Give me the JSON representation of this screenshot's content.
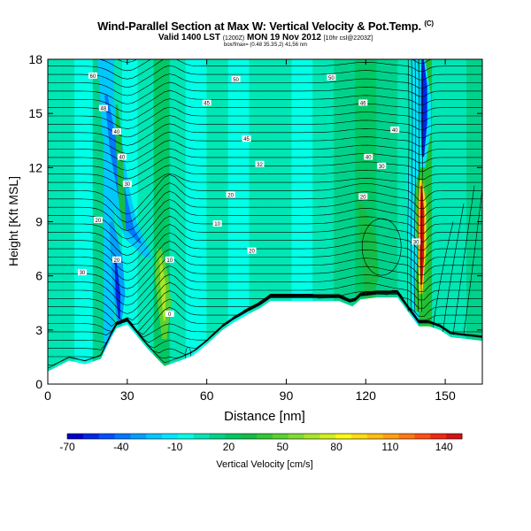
{
  "chart_data": {
    "type": "heatmap",
    "title": "Wind-Parallel Section at Max W: Vertical Velocity & Pot.Temp.",
    "title_tag": "(C)",
    "subtitle": "Valid 1400 LST",
    "subtitle_small": "(1200Z)",
    "subtitle_rest": "MON 19 Nov 2012",
    "subtitle_tail": "[10hr csl@2203Z]",
    "source_line": "box/fmax= (0.48 35.3S,2) 41,56 nm",
    "xlabel": "Distance [nm]",
    "ylabel": "Height [Kft MSL]",
    "xlim": [
      0,
      164
    ],
    "ylim": [
      0,
      18
    ],
    "x_ticks": [
      "0",
      "30",
      "60",
      "90",
      "120",
      "150"
    ],
    "y_ticks": [
      "0",
      "3",
      "6",
      "9",
      "12",
      "15",
      "18"
    ],
    "x_tick_values": [
      0,
      30,
      60,
      90,
      120,
      150
    ],
    "y_tick_values": [
      0,
      3,
      6,
      9,
      12,
      15,
      18
    ],
    "colorbar": {
      "label": "Vertical Velocity [cm/s]",
      "tick_labels": [
        "-70",
        "-40",
        "-10",
        "20",
        "50",
        "80",
        "110",
        "140"
      ],
      "tick_values": [
        -70,
        -40,
        -10,
        20,
        50,
        80,
        110,
        140
      ],
      "min": -70,
      "max": 150,
      "colors": [
        "#0000c8",
        "#0028e6",
        "#0050ff",
        "#0078ff",
        "#00a0ff",
        "#00c8ff",
        "#00e6ff",
        "#00ffe6",
        "#00e6b4",
        "#00d28c",
        "#00c864",
        "#14be46",
        "#32c832",
        "#5ad232",
        "#82dc32",
        "#aae628",
        "#d2f01e",
        "#fafa14",
        "#ffdc14",
        "#ffbe14",
        "#ffa014",
        "#ff7814",
        "#ff5014",
        "#f02814",
        "#d21414"
      ]
    },
    "terrain": [
      [
        0,
        0.7
      ],
      [
        8,
        1.3
      ],
      [
        14,
        1.1
      ],
      [
        20,
        1.4
      ],
      [
        24,
        2.6
      ],
      [
        26,
        3.1
      ],
      [
        30,
        3.3
      ],
      [
        34,
        2.6
      ],
      [
        38,
        1.9
      ],
      [
        44,
        1.0
      ],
      [
        50,
        1.3
      ],
      [
        55,
        1.6
      ],
      [
        60,
        2.2
      ],
      [
        66,
        3.0
      ],
      [
        70,
        3.4
      ],
      [
        76,
        3.9
      ],
      [
        80,
        4.2
      ],
      [
        84,
        4.6
      ],
      [
        90,
        4.6
      ],
      [
        100,
        4.6
      ],
      [
        110,
        4.6
      ],
      [
        115,
        4.3
      ],
      [
        118,
        4.7
      ],
      [
        124,
        4.8
      ],
      [
        132,
        4.8
      ],
      [
        136,
        4.0
      ],
      [
        140,
        3.2
      ],
      [
        144,
        3.2
      ],
      [
        148,
        3.0
      ],
      [
        152,
        2.6
      ],
      [
        158,
        2.5
      ],
      [
        164,
        2.4
      ]
    ],
    "theta_labels": [
      {
        "x": 17,
        "y": 17.1,
        "text": "60"
      },
      {
        "x": 71,
        "y": 16.9,
        "text": "50"
      },
      {
        "x": 107,
        "y": 17.0,
        "text": "50"
      },
      {
        "x": 21,
        "y": 15.3,
        "text": "48"
      },
      {
        "x": 60,
        "y": 15.6,
        "text": "45"
      },
      {
        "x": 119,
        "y": 15.6,
        "text": "46"
      },
      {
        "x": 26,
        "y": 14.0,
        "text": "40"
      },
      {
        "x": 75,
        "y": 13.6,
        "text": "45"
      },
      {
        "x": 131,
        "y": 14.1,
        "text": "40"
      },
      {
        "x": 28,
        "y": 12.6,
        "text": "40"
      },
      {
        "x": 80,
        "y": 12.2,
        "text": "32"
      },
      {
        "x": 121,
        "y": 12.6,
        "text": "40"
      },
      {
        "x": 30,
        "y": 11.1,
        "text": "30"
      },
      {
        "x": 126,
        "y": 12.1,
        "text": "30"
      },
      {
        "x": 69,
        "y": 10.5,
        "text": "20"
      },
      {
        "x": 119,
        "y": 10.4,
        "text": "20"
      },
      {
        "x": 19,
        "y": 9.1,
        "text": "20"
      },
      {
        "x": 64,
        "y": 8.9,
        "text": "10"
      },
      {
        "x": 26,
        "y": 6.9,
        "text": "20"
      },
      {
        "x": 46,
        "y": 6.9,
        "text": "10"
      },
      {
        "x": 13,
        "y": 6.2,
        "text": "30"
      },
      {
        "x": 77,
        "y": 7.4,
        "text": "20"
      },
      {
        "x": 139,
        "y": 7.9,
        "text": "30"
      },
      {
        "x": 46,
        "y": 3.9,
        "text": "0"
      }
    ],
    "features": [
      {
        "label": "updraft-strong",
        "x": 141,
        "y_bottom": 4.0,
        "y_top": 11.4,
        "w_peak": 145
      },
      {
        "label": "downdraft-upper",
        "x": 142,
        "y_bottom": 12.0,
        "y_top": 18.0,
        "w_peak": -70
      },
      {
        "label": "downdraft-lee",
        "x": 26,
        "y_bottom": 3.2,
        "y_top": 8.5,
        "w_peak": -45
      },
      {
        "label": "updraft-weak",
        "x": 44,
        "y_bottom": 2.5,
        "y_top": 7.0,
        "w_peak": 55
      }
    ]
  }
}
